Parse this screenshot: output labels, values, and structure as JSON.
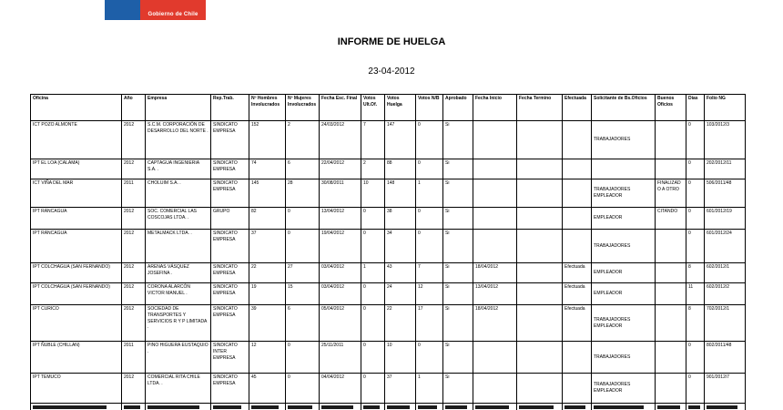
{
  "logo": {
    "text": "Gobierno de Chile"
  },
  "colors": {
    "logo_blue": "#1e5fa8",
    "logo_red": "#e13a2d"
  },
  "header": {
    "title": "INFORME DE HUELGA",
    "date": "23-04-2012"
  },
  "table": {
    "columns": [
      "Oficina",
      "Año",
      "Empresa",
      "Rep.Trab.",
      "Nº Hombres Involucrados",
      "Nº Mujeres Involucrados",
      "Fecha Esc. Final",
      "Votos Ult.Of.",
      "Votos Huelga",
      "Votos N/B",
      "Aprobado",
      "Fecha Inicio",
      "Fecha Termino",
      "Efectuada",
      "Solicitante de Bs.Oficios",
      "Buenos Oficios",
      "Días",
      "Folio NG"
    ],
    "rows": [
      [
        "ICT POZO ALMONTE",
        "2012",
        "S.C.M. CORPORACIÓN DE DESARROLLO DEL NORTE .",
        "SINDICATO EMPRESA",
        "152",
        "2",
        "24/03/2012",
        "7",
        "147",
        "0",
        "Si",
        "",
        "",
        "",
        "TRABAJADORES",
        "",
        "0",
        "103/2012/3"
      ],
      [
        "IPT EL LOA (CALAMA)",
        "2012",
        "CAPTAGUA INGENIERIA S.A. .",
        "SINDICATO EMPRESA",
        "74",
        "6",
        "22/04/2012",
        "2",
        "88",
        "0",
        "Si",
        "",
        "",
        "",
        "",
        "",
        "0",
        "202/2012/11"
      ],
      [
        "ICT VIÑA DEL MAR",
        "2011",
        "CHOLUIM S.A. .",
        "SINDICATO EMPRESA",
        "145",
        "28",
        "30/08/2011",
        "10",
        "148",
        "1",
        "Si",
        "",
        "",
        "",
        "TRABAJADORES EMPLEADOR",
        "FINALIZADO A OTRO",
        "0",
        "506/2011/48"
      ],
      [
        "IPT RANCAGUA",
        "2012",
        "SOC. COMERCIAL LAS COSCOJAS LTDA. .",
        "GRUPO",
        "82",
        "0",
        "13/04/2012",
        "0",
        "38",
        "0",
        "Si",
        "",
        "",
        "",
        "EMPLEADOR",
        "CITANDO",
        "0",
        "601/2012/19"
      ],
      [
        "IPT RANCAGUA",
        "2012",
        "METALMACK LTDA. .",
        "SINDICATO EMPRESA",
        "37",
        "0",
        "19/04/2012",
        "0",
        "34",
        "0",
        "Si",
        "",
        "",
        "",
        "TRABAJADORES",
        "",
        "0",
        "601/2012/24"
      ],
      [
        "IPT COLCHAGUA (SAN FERNANDO)",
        "2012",
        "ARENAS VÁSQUEZ JOSEFINA .",
        "SINDICATO EMPRESA",
        "22",
        "27",
        "03/04/2012",
        "1",
        "43",
        "7",
        "Si",
        "18/04/2012",
        "",
        "Efectuada",
        "EMPLEADOR",
        "",
        "8",
        "602/2012/1"
      ],
      [
        "IPT COLCHAGUA (SAN FERNANDO)",
        "2012",
        "CORONA ALARCÓN VICTOR MANUEL .",
        "SINDICATO EMPRESA",
        "19",
        "15",
        "03/04/2012",
        "0",
        "24",
        "12",
        "Si",
        "13/04/2012",
        "",
        "Efectuada",
        "EMPLEADOR",
        "",
        "11",
        "602/2012/2"
      ],
      [
        "IPT CURICO",
        "2012",
        "SOCIEDAD DE TRANSPORTES Y SERVICIOS R Y P LIMITADA .",
        "SINDICATO EMPRESA",
        "39",
        "6",
        "05/04/2012",
        "0",
        "22",
        "17",
        "Si",
        "18/04/2012",
        "",
        "Efectuada",
        "TRABAJADORES EMPLEADOR",
        "",
        "8",
        "702/2012/1"
      ],
      [
        "IPT ÑUBLE (CHILLAN)",
        "2011",
        "PINO HIGUERA EUSTAQUIO .",
        "SINDICATO INTER EMPRESA",
        "12",
        "0",
        "25/11/2011",
        "0",
        "10",
        "0",
        "Si",
        "",
        "",
        "",
        "TRABAJADORES",
        "",
        "0",
        "802/2011/48"
      ],
      [
        "IPT TEMUCO",
        "2012",
        "COMERCIAL RITA CHILE LTDA. .",
        "SINDICATO EMPRESA",
        "45",
        "0",
        "04/04/2012",
        "0",
        "37",
        "1",
        "Si",
        "",
        "",
        "",
        "TRABAJADORES EMPLEADOR",
        "",
        "0",
        "901/2012/7"
      ]
    ],
    "partial_row_present": true
  }
}
